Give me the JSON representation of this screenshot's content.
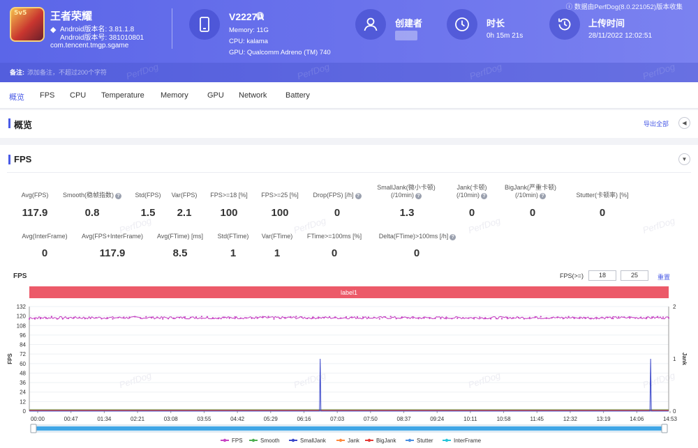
{
  "header": {
    "app": {
      "logo_text": "5v5",
      "name": "王者荣耀",
      "version_name": "Android版本名: 3.81.1.8",
      "version_code": "Android版本号: 381010801",
      "package": "com.tencent.tmgp.sgame"
    },
    "device": {
      "name": "V2227A",
      "memory": "Memory: 11G",
      "cpu": "CPU: kalama",
      "gpu": "GPU: Qualcomm Adreno (TM) 740"
    },
    "creator": {
      "title": "创建者"
    },
    "duration": {
      "title": "时长",
      "value": "0h 15m 21s"
    },
    "upload": {
      "title": "上传时间",
      "value": "28/11/2022 12:02:51"
    },
    "source_note": "数据由PerfDog(8.0.221052)版本收集",
    "note": {
      "label": "备注:",
      "placeholder": "添加备注，不超过200个字符"
    },
    "watermark": "PerfDog"
  },
  "tabs": [
    "概览",
    "FPS",
    "CPU",
    "Temperature",
    "Memory",
    "GPU",
    "Network",
    "Battery"
  ],
  "overview": {
    "title": "概览",
    "export_label": "导出全部"
  },
  "fps_section": {
    "title": "FPS",
    "metrics_row1": [
      {
        "label": "Avg(FPS)",
        "value": "117.9"
      },
      {
        "label": "Smooth(稳帧指数)",
        "value": "0.8",
        "help": true
      },
      {
        "label": "Std(FPS)",
        "value": "1.5"
      },
      {
        "label": "Var(FPS)",
        "value": "2.1"
      },
      {
        "label": "FPS>=18 [%]",
        "value": "100"
      },
      {
        "label": "FPS>=25 [%]",
        "value": "100"
      },
      {
        "label": "Drop(FPS) [/h]",
        "value": "0",
        "help": true
      },
      {
        "label": "SmallJank(微小卡顿)",
        "label2": "(/10min)",
        "value": "1.3",
        "help": true
      },
      {
        "label": "Jank(卡顿)",
        "label2": "(/10min)",
        "value": "0",
        "help": true
      },
      {
        "label": "BigJank(严重卡顿)",
        "label2": "(/10min)",
        "value": "0",
        "help": true
      },
      {
        "label": "Stutter(卡顿率) [%]",
        "value": "0"
      }
    ],
    "metrics_row2": [
      {
        "label": "Avg(InterFrame)",
        "value": "0"
      },
      {
        "label": "Avg(FPS+InterFrame)",
        "value": "117.9"
      },
      {
        "label": "Avg(FTime) [ms]",
        "value": "8.5"
      },
      {
        "label": "Std(FTime)",
        "value": "1"
      },
      {
        "label": "Var(FTime)",
        "value": "1"
      },
      {
        "label": "FTime>=100ms [%]",
        "value": "0"
      },
      {
        "label": "Delta(FTime)>100ms [/h]",
        "value": "0",
        "help": true
      }
    ],
    "chart_title": "FPS",
    "threshold_label": "FPS(>=)",
    "threshold_values": [
      "18",
      "25"
    ],
    "reset_label": "重置"
  },
  "chart_data": {
    "type": "line",
    "label_band": "label1",
    "ylabel": "FPS",
    "y2label": "Jank",
    "ylim": [
      0,
      132
    ],
    "yticks": [
      0,
      12,
      24,
      36,
      48,
      60,
      72,
      84,
      96,
      108,
      120,
      132
    ],
    "y2lim": [
      0,
      2
    ],
    "y2ticks": [
      0,
      1,
      2
    ],
    "xticks": [
      "00:00",
      "00:47",
      "01:34",
      "02:21",
      "03:08",
      "03:55",
      "04:42",
      "05:29",
      "06:16",
      "07:03",
      "07:50",
      "08:37",
      "09:24",
      "10:11",
      "10:58",
      "11:45",
      "12:32",
      "13:19",
      "14:06",
      "14:53"
    ],
    "x_range_seconds": [
      0,
      921
    ],
    "series": [
      {
        "name": "FPS",
        "color": "#c744c3",
        "axis": "left",
        "mean": 117.9,
        "std": 1.5
      },
      {
        "name": "Smooth",
        "color": "#4caf50",
        "axis": "left",
        "value": 0.8
      },
      {
        "name": "SmallJank",
        "color": "#3946c9",
        "axis": "right",
        "events_seconds": [
          419,
          895
        ],
        "event_value": 1
      },
      {
        "name": "Jank",
        "color": "#ff8a3d",
        "axis": "right",
        "value": 0
      },
      {
        "name": "BigJank",
        "color": "#e53935",
        "axis": "right",
        "value": 0
      },
      {
        "name": "Stutter",
        "color": "#4a90e2",
        "axis": "left",
        "value": 0
      },
      {
        "name": "InterFrame",
        "color": "#26c6da",
        "axis": "left",
        "value": 0
      }
    ],
    "legend_position": "bottom",
    "grid": true
  }
}
